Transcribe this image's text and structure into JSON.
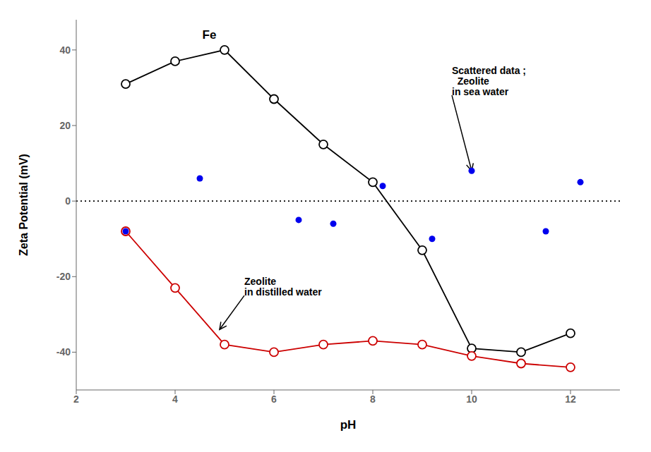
{
  "chart_data": {
    "type": "line",
    "xlabel": "pH",
    "ylabel": "Zeta Potential (mV)",
    "xlim": [
      2,
      13
    ],
    "ylim": [
      -50,
      48
    ],
    "xticks": [
      2,
      4,
      6,
      8,
      10,
      12
    ],
    "yticks": [
      -40,
      -20,
      0,
      20,
      40
    ],
    "grid": false,
    "series": [
      {
        "type": "line",
        "color": "#000000",
        "marker": "circle",
        "line_style": "solid",
        "x": [
          3,
          4,
          5,
          6,
          7,
          8,
          9,
          10,
          11,
          12
        ],
        "values": [
          31,
          37,
          40,
          27,
          15,
          5,
          -13,
          -39,
          -40,
          -35
        ]
      },
      {
        "type": "line",
        "color": "#cc0000",
        "marker": "circle",
        "line_style": "solid",
        "x": [
          3,
          4,
          5,
          6,
          7,
          8,
          9,
          10,
          11,
          12
        ],
        "values": [
          -8,
          -23,
          -38,
          -40,
          -38,
          -37,
          -38,
          -41,
          -43,
          -44
        ]
      },
      {
        "type": "scatter",
        "color": "#0000ee",
        "marker": "circle",
        "x": [
          3,
          4.5,
          6.5,
          7.2,
          8.2,
          9.2,
          10,
          11.5,
          12.2
        ],
        "values": [
          -8,
          6,
          -5,
          -6,
          4,
          -10,
          8,
          -8,
          5
        ]
      }
    ],
    "reference_lines": [
      {
        "y": 0,
        "line_style": "dotted",
        "color": "#000000"
      }
    ],
    "annotations": [
      {
        "text": "Fe",
        "x": 4.55,
        "y": 43
      },
      {
        "text": "Zeolite\nin distilled water",
        "x": 5.4,
        "y": -25,
        "arrow_x": 4.9,
        "arrow_y": -34
      },
      {
        "text": "Scattered data ;\n  Zeolite\nin sea water",
        "x": 9.6,
        "y": 28,
        "arrow_x": 10,
        "arrow_y": 8
      }
    ]
  }
}
